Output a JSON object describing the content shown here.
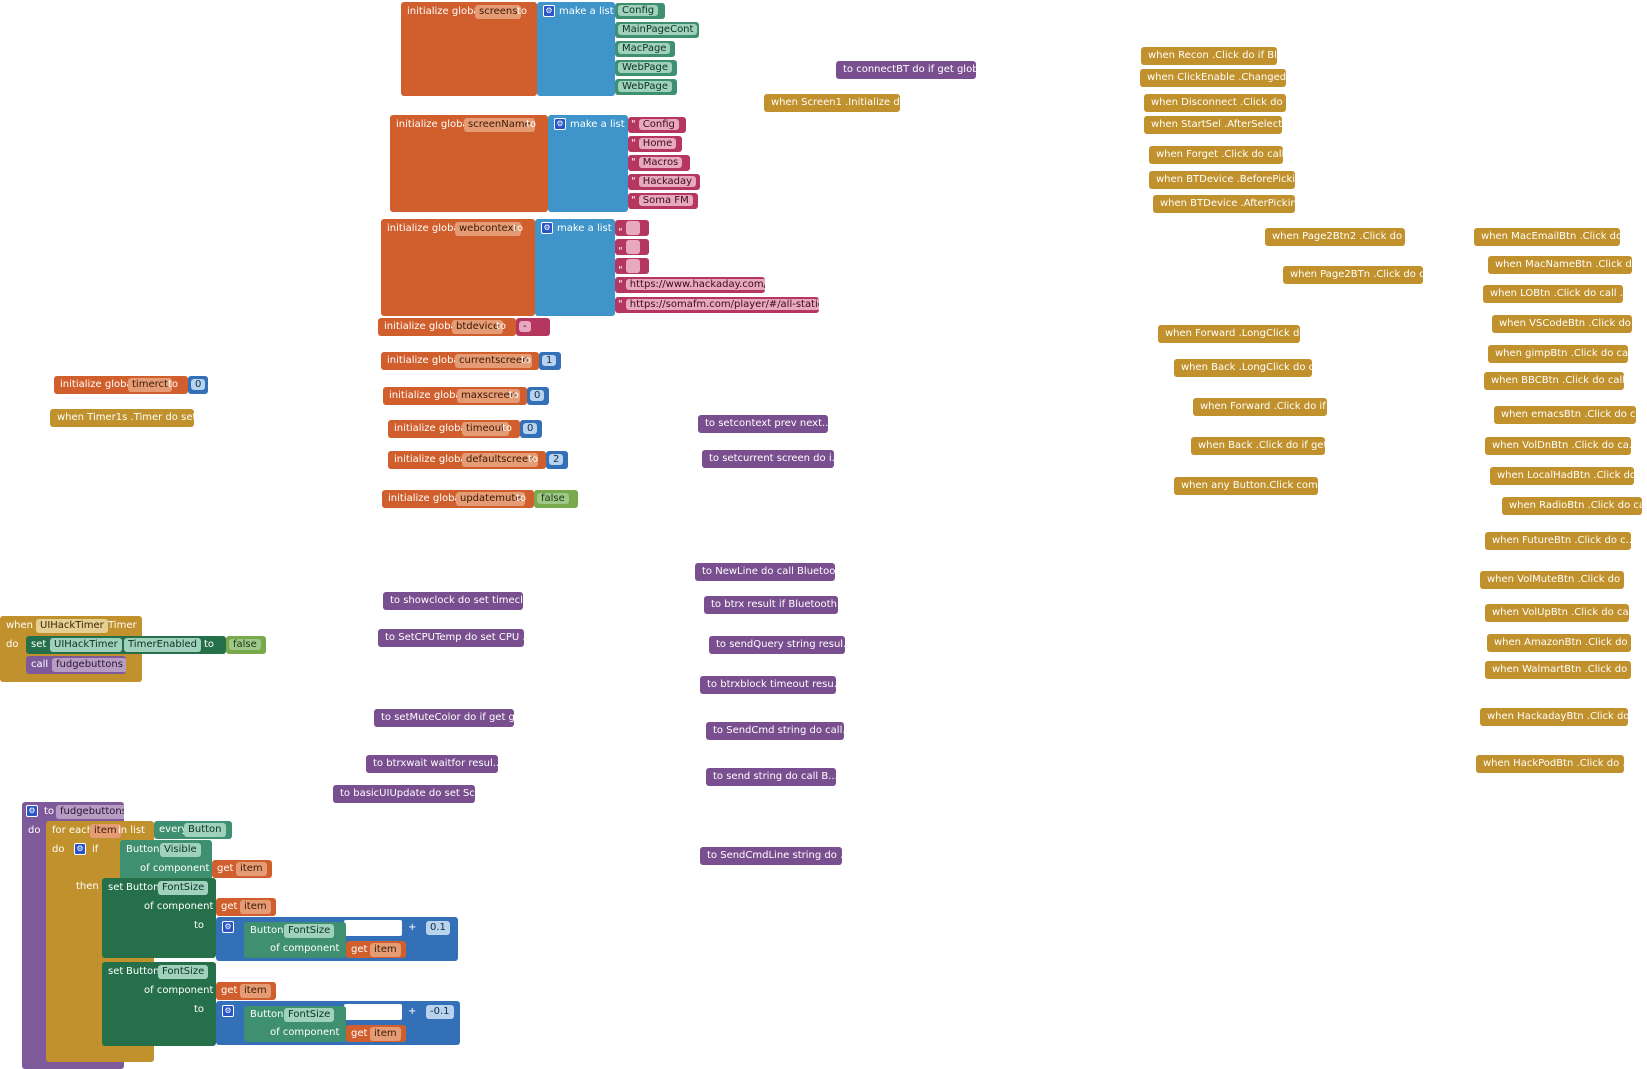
{
  "labels": {
    "initialize_global": "initialize global",
    "to": "to",
    "make_a_list": "make a list",
    "when": "when",
    "do": "do",
    "set": "set",
    "call": "call",
    "for_each": "for each",
    "in_list": "in list",
    "every": "every",
    "if": "if",
    "then": "then",
    "of_component": "of component",
    "get": "get",
    "plus": "+",
    "quote": "\""
  },
  "globals": [
    {
      "name": "screens",
      "list_items": [
        "Config",
        "MainPageCont",
        "MacPage",
        "WebPage",
        "WebPage"
      ]
    },
    {
      "name": "screenName",
      "list_items": [
        "Config",
        "Home",
        "Macros",
        "Hackaday",
        "Soma FM"
      ]
    },
    {
      "name": "webcontext",
      "list_items": [
        "",
        "",
        "",
        "https://www.hackaday.com/",
        "https://somafm.com/player/#/all-stations"
      ]
    },
    {
      "name": "btdevice",
      "value": "-"
    },
    {
      "name": "currentscreen",
      "value": "1"
    },
    {
      "name": "maxscreen",
      "value": "0"
    },
    {
      "name": "timeout",
      "value": "0"
    },
    {
      "name": "defaultscreen",
      "value": "2"
    },
    {
      "name": "updatemute",
      "value": "false"
    },
    {
      "name": "timerct",
      "value": "0"
    }
  ],
  "left_blocks": {
    "timer1s": "when  Timer1s .Timer do set...",
    "uihack_component": "UIHackTimer",
    "uihack_event": "Timer",
    "uihack_set_component": "UIHackTimer",
    "uihack_set_property": "TimerEnabled",
    "uihack_set_value": "false",
    "uihack_call": "fudgebuttons"
  },
  "fudge": {
    "proc_name": "fudgebuttons",
    "item_var": "item",
    "every_type": "Button",
    "if_type": "Button",
    "if_prop": "Visible",
    "set_type": "Button",
    "set_prop": "FontSize",
    "get_item": "item",
    "inc_value": "0.1",
    "dec_value": "-0.1"
  },
  "procedures_mid": [
    "to showclock do set  timecl...",
    "to SetCPUTemp do set  CPU ...",
    "to setMuteColor do if get g...",
    "to btrxwait  waitfor resul...",
    "to basicUIUpdate do set  Sc..."
  ],
  "procedures_center": [
    "to connectBT do if get glob...",
    "to setcontext  prev  next...",
    "to setcurrent  screen do i...",
    "to NewLine do call  Bluetoo...",
    "to btrx result if Bluetooth...",
    "to sendQuery  string resul...",
    "to btrxblock  timeout resu...",
    "to SendCmd  string do call...",
    "to send  string do call  B...",
    "to SendCmdLine  string do ..."
  ],
  "event_screen1": "when  Screen1 .Initialize d...",
  "events_right": [
    "when  Recon .Click do if Bl...",
    "when  ClickEnable .Changed ...",
    "when  Disconnect .Click do ...",
    "when  StartSel .AfterSelect...",
    "when  Forget .Click do call...",
    "when  BTDevice .BeforePicki...",
    "when  BTDevice .AfterPickin...",
    "when  Page2Btn2 .Click do c...",
    "when  Page2BTn .Click do ca...",
    "when  Forward .LongClick do...",
    "when  Back .LongClick do ca...",
    "when  Forward .Click do if ...",
    "when  Back .Click do if get...",
    "when any Button.Click   com..."
  ],
  "events_far_right": [
    "when  MacEmailBtn .Click do...",
    "when  MacNameBtn .Click do ...",
    "when  LOBtn .Click do call ...",
    "when  VSCodeBtn .Click do c...",
    "when  gimpBtn .Click do cal...",
    "when  BBCBtn .Click do call...",
    "when  emacsBtn .Click do ca...",
    "when  VolDnBtn .Click do ca...",
    "when  LocalHadBtn .Click do...",
    "when  RadioBtn .Click do ca...",
    "when  FutureBtn .Click do c...",
    "when  VolMuteBtn .Click do ...",
    "when  VolUpBtn .Click do ca...",
    "when  AmazonBtn .Click do c...",
    "when  WalmartBtn .Click do ...",
    "when  HackadayBtn .Click do...",
    "when  HackPodBtn .Click do ..."
  ]
}
